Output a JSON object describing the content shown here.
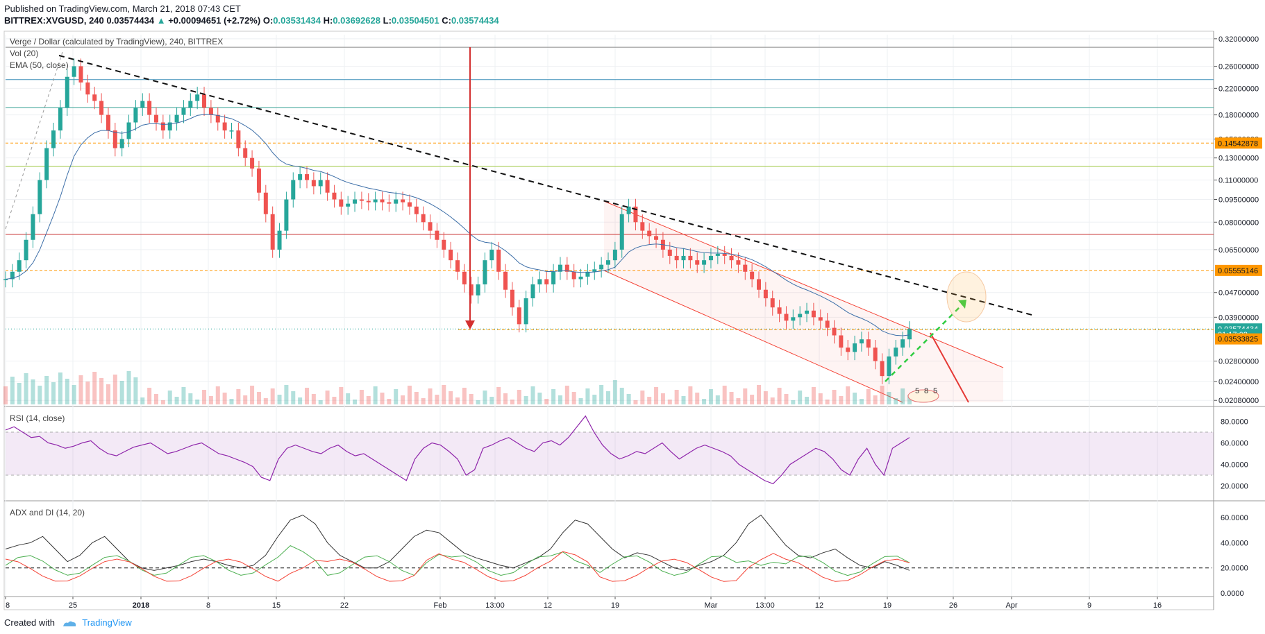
{
  "header": {
    "published": "Published on TradingView.com, March 21, 2018 07:43 CET",
    "symbol": "BITTREX:XVGUSD, 240",
    "last": "0.03574434",
    "change_arrow": "▲",
    "change": "+0.00094651 (+2.72%)",
    "o_label": "O:",
    "o": "0.03531434",
    "h_label": "H:",
    "h": "0.03692628",
    "l_label": "L:",
    "l": "0.03504501",
    "c_label": "C:",
    "c": "0.03574434"
  },
  "panes": {
    "main_title": "Verge / Dollar (calculated by TradingView), 240, BITTREX",
    "vol_label": "Vol (20)",
    "ema_label": "EMA (50, close)",
    "rsi_label": "RSI (14, close)",
    "adx_label": "ADX and DI (14, 20)"
  },
  "footer": {
    "created_with": "Created with",
    "brand": "TradingView"
  },
  "colors": {
    "up": "#26a69a",
    "down": "#ef5350",
    "ema": "#3d6fa8",
    "rsi": "#8e24aa",
    "adx": "#333333",
    "di_plus": "#4caf50",
    "di_minus": "#f44336",
    "channel": "#f44336",
    "orange_level": "#ff9800",
    "current_price_bg": "#26a69a"
  },
  "chart_data": {
    "type": "candlestick",
    "log_scale": true,
    "price_axis_ticks": [
      "0.32000000",
      "0.26000000",
      "0.22000000",
      "0.18000000",
      "0.15000000",
      "0.13000000",
      "0.11000000",
      "0.09500000",
      "0.08000000",
      "0.06500000",
      "0.04700000",
      "0.03900000",
      "0.02800000",
      "0.02400000",
      "0.02080000"
    ],
    "price_labels": [
      {
        "value": "0.14542878",
        "kind": "level"
      },
      {
        "value": "0.05555146",
        "kind": "level"
      },
      {
        "value": "0.03574434",
        "kind": "last"
      },
      {
        "value": "01:17:02",
        "kind": "countdown"
      },
      {
        "value": "0.03533825",
        "kind": "level"
      }
    ],
    "time_axis_ticks": [
      "8",
      "25",
      "2018",
      "8",
      "15",
      "22",
      "Feb",
      "13:00",
      "12",
      "19",
      "Mar",
      "13:00",
      "12",
      "19",
      "26",
      "Apr",
      "9",
      "16"
    ],
    "rsi_ticks": [
      "80.0000",
      "60.0000",
      "40.0000",
      "20.0000"
    ],
    "rsi_band": [
      30,
      70
    ],
    "adx_ticks": [
      "60.0000",
      "40.0000",
      "20.0000",
      "0.0000"
    ],
    "adx_ref": 20,
    "annotations": [
      "downtrend line",
      "descending channel",
      "red drop arrow",
      "green projected path",
      "target circle"
    ],
    "event_badge": [
      "5",
      "8",
      "5"
    ],
    "price_series": [
      0.052,
      0.055,
      0.06,
      0.07,
      0.085,
      0.11,
      0.14,
      0.16,
      0.19,
      0.24,
      0.26,
      0.23,
      0.21,
      0.2,
      0.18,
      0.16,
      0.14,
      0.15,
      0.17,
      0.19,
      0.2,
      0.18,
      0.17,
      0.16,
      0.17,
      0.18,
      0.19,
      0.2,
      0.21,
      0.19,
      0.18,
      0.17,
      0.16,
      0.16,
      0.14,
      0.13,
      0.12,
      0.1,
      0.085,
      0.065,
      0.075,
      0.095,
      0.11,
      0.115,
      0.11,
      0.105,
      0.11,
      0.1,
      0.095,
      0.09,
      0.092,
      0.095,
      0.094,
      0.093,
      0.095,
      0.093,
      0.092,
      0.095,
      0.093,
      0.09,
      0.085,
      0.08,
      0.075,
      0.07,
      0.065,
      0.06,
      0.055,
      0.05,
      0.046,
      0.05,
      0.06,
      0.065,
      0.055,
      0.048,
      0.042,
      0.037,
      0.045,
      0.05,
      0.052,
      0.05,
      0.055,
      0.058,
      0.055,
      0.052,
      0.053,
      0.055,
      0.056,
      0.058,
      0.06,
      0.065,
      0.085,
      0.09,
      0.08,
      0.075,
      0.072,
      0.07,
      0.065,
      0.062,
      0.06,
      0.062,
      0.06,
      0.058,
      0.06,
      0.062,
      0.063,
      0.062,
      0.06,
      0.058,
      0.055,
      0.052,
      0.048,
      0.045,
      0.042,
      0.04,
      0.038,
      0.039,
      0.04,
      0.041,
      0.039,
      0.038,
      0.036,
      0.034,
      0.031,
      0.03,
      0.032,
      0.033,
      0.031,
      0.028,
      0.025,
      0.029,
      0.031,
      0.033,
      0.0357
    ],
    "rsi_series": [
      72,
      75,
      70,
      65,
      66,
      60,
      58,
      55,
      57,
      60,
      62,
      55,
      50,
      48,
      52,
      56,
      58,
      60,
      55,
      50,
      52,
      55,
      58,
      60,
      55,
      50,
      48,
      45,
      42,
      38,
      28,
      25,
      45,
      55,
      58,
      55,
      52,
      50,
      55,
      58,
      52,
      48,
      50,
      45,
      40,
      35,
      30,
      25,
      45,
      55,
      60,
      58,
      52,
      45,
      30,
      35,
      55,
      58,
      62,
      65,
      60,
      55,
      52,
      60,
      62,
      58,
      65,
      75,
      85,
      70,
      58,
      50,
      45,
      48,
      52,
      50,
      55,
      60,
      52,
      45,
      50,
      55,
      58,
      55,
      52,
      48,
      40,
      35,
      30,
      25,
      22,
      30,
      40,
      45,
      50,
      55,
      52,
      45,
      35,
      30,
      45,
      55,
      40,
      30,
      55,
      60,
      65
    ],
    "adx_series": [
      35,
      38,
      40,
      45,
      35,
      25,
      30,
      40,
      45,
      35,
      25,
      20,
      18,
      20,
      22,
      25,
      27,
      25,
      22,
      20,
      22,
      30,
      45,
      58,
      62,
      55,
      40,
      30,
      25,
      20,
      20,
      25,
      35,
      45,
      50,
      48,
      40,
      32,
      28,
      25,
      22,
      20,
      24,
      28,
      35,
      48,
      58,
      55,
      45,
      35,
      28,
      32,
      30,
      25,
      20,
      18,
      22,
      25,
      30,
      40,
      55,
      62,
      50,
      38,
      30,
      28,
      32,
      35,
      28,
      22,
      20,
      25,
      22,
      18
    ]
  }
}
